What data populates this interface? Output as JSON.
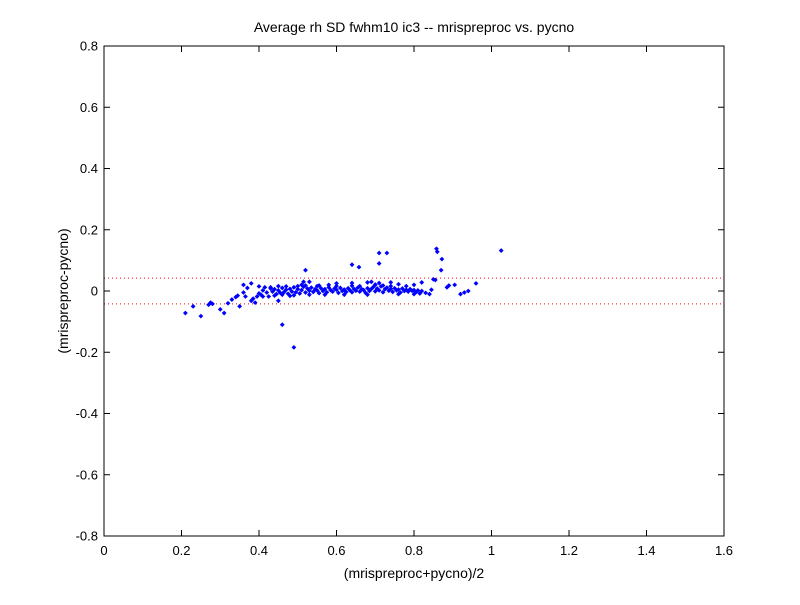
{
  "chart_data": {
    "type": "scatter",
    "title": "Average rh SD fwhm10 ic3 -- mrispreproc vs. pycno",
    "xlabel": "(mrispreproc+pycno)/2",
    "ylabel": "(mrispreproc-pycno)",
    "xlim": [
      0,
      1.6
    ],
    "ylim": [
      -0.8,
      0.8
    ],
    "xticks": [
      0,
      0.2,
      0.4,
      0.6,
      0.8,
      1,
      1.2,
      1.4,
      1.6
    ],
    "xtick_labels": [
      "0",
      "0.2",
      "0.4",
      "0.6",
      "0.8",
      "1",
      "1.2",
      "1.4",
      "1.6"
    ],
    "yticks": [
      -0.8,
      -0.6,
      -0.4,
      -0.2,
      0,
      0.2,
      0.4,
      0.6,
      0.8
    ],
    "ytick_labels": [
      "-0.8",
      "-0.6",
      "-0.4",
      "-0.2",
      "0",
      "0.2",
      "0.4",
      "0.6",
      "0.8"
    ],
    "grid": false,
    "point_color": "#0000ff",
    "reference_lines": [
      {
        "y": 0.042,
        "color": "#ff0000",
        "style": "dotted"
      },
      {
        "y": -0.042,
        "color": "#ff0000",
        "style": "dotted"
      }
    ],
    "points": [
      [
        0.21,
        -0.072
      ],
      [
        0.23,
        -0.05
      ],
      [
        0.25,
        -0.082
      ],
      [
        0.27,
        -0.045
      ],
      [
        0.275,
        -0.038
      ],
      [
        0.28,
        -0.042
      ],
      [
        0.3,
        -0.06
      ],
      [
        0.31,
        -0.072
      ],
      [
        0.32,
        -0.04
      ],
      [
        0.33,
        -0.028
      ],
      [
        0.34,
        -0.02
      ],
      [
        0.345,
        -0.015
      ],
      [
        0.35,
        -0.05
      ],
      [
        0.36,
        -0.005
      ],
      [
        0.365,
        -0.018
      ],
      [
        0.37,
        0.01
      ],
      [
        0.38,
        -0.032
      ],
      [
        0.385,
        -0.025
      ],
      [
        0.39,
        -0.038
      ],
      [
        0.395,
        -0.018
      ],
      [
        0.4,
        -0.008
      ],
      [
        0.405,
        -0.012
      ],
      [
        0.41,
        0.002
      ],
      [
        0.415,
        0.012
      ],
      [
        0.42,
        -0.005
      ],
      [
        0.425,
        -0.018
      ],
      [
        0.43,
        0.008
      ],
      [
        0.435,
        -0.002
      ],
      [
        0.44,
        0.006
      ],
      [
        0.445,
        -0.01
      ],
      [
        0.45,
        0.002
      ],
      [
        0.455,
        -0.006
      ],
      [
        0.46,
        0.01
      ],
      [
        0.465,
        -0.003
      ],
      [
        0.47,
        0.004
      ],
      [
        0.475,
        -0.009
      ],
      [
        0.48,
        0.007
      ],
      [
        0.485,
        -0.002
      ],
      [
        0.49,
        0.012
      ],
      [
        0.495,
        -0.004
      ],
      [
        0.5,
        0.006
      ],
      [
        0.505,
        -0.008
      ],
      [
        0.51,
        0.003
      ],
      [
        0.515,
        0.014
      ],
      [
        0.52,
        -0.005
      ],
      [
        0.525,
        0.008
      ],
      [
        0.53,
        0.001
      ],
      [
        0.535,
        0.011
      ],
      [
        0.54,
        -0.003
      ],
      [
        0.545,
        0.006
      ],
      [
        0.55,
        0.002
      ],
      [
        0.555,
        -0.007
      ],
      [
        0.56,
        0.009
      ],
      [
        0.565,
        0.0
      ],
      [
        0.57,
        0.006
      ],
      [
        0.575,
        -0.004
      ],
      [
        0.58,
        0.012
      ],
      [
        0.585,
        0.003
      ],
      [
        0.59,
        -0.002
      ],
      [
        0.595,
        0.008
      ],
      [
        0.6,
        0.004
      ],
      [
        0.605,
        -0.006
      ],
      [
        0.61,
        0.01
      ],
      [
        0.615,
        0.0
      ],
      [
        0.62,
        0.005
      ],
      [
        0.625,
        -0.003
      ],
      [
        0.63,
        0.009
      ],
      [
        0.635,
        0.002
      ],
      [
        0.64,
        -0.004
      ],
      [
        0.645,
        0.007
      ],
      [
        0.65,
        0.001
      ],
      [
        0.655,
        0.011
      ],
      [
        0.66,
        -0.002
      ],
      [
        0.665,
        0.006
      ],
      [
        0.67,
        0.003
      ],
      [
        0.675,
        -0.006
      ],
      [
        0.68,
        0.009
      ],
      [
        0.685,
        0.0
      ],
      [
        0.69,
        0.007
      ],
      [
        0.695,
        0.013
      ],
      [
        0.7,
        -0.001
      ],
      [
        0.705,
        0.008
      ],
      [
        0.71,
        0.002
      ],
      [
        0.715,
        0.015
      ],
      [
        0.72,
        -0.004
      ],
      [
        0.725,
        0.006
      ],
      [
        0.73,
        0.011
      ],
      [
        0.735,
        0.001
      ],
      [
        0.74,
        0.007
      ],
      [
        0.745,
        -0.003
      ],
      [
        0.75,
        0.009
      ],
      [
        0.755,
        0.002
      ],
      [
        0.76,
        0.005
      ],
      [
        0.765,
        -0.005
      ],
      [
        0.77,
        0.008
      ],
      [
        0.775,
        0.0
      ],
      [
        0.78,
        0.004
      ],
      [
        0.785,
        -0.002
      ],
      [
        0.79,
        0.006
      ],
      [
        0.795,
        0.001
      ],
      [
        0.8,
        0.003
      ],
      [
        0.805,
        -0.004
      ],
      [
        0.81,
        0.002
      ],
      [
        0.815,
        -0.008
      ],
      [
        0.82,
        0.0
      ],
      [
        0.83,
        -0.006
      ],
      [
        0.84,
        -0.01
      ],
      [
        0.845,
        0.004
      ],
      [
        0.43,
        0.012
      ],
      [
        0.44,
        -0.015
      ],
      [
        0.46,
        -0.012
      ],
      [
        0.47,
        0.015
      ],
      [
        0.49,
        -0.014
      ],
      [
        0.5,
        0.016
      ],
      [
        0.52,
        0.018
      ],
      [
        0.53,
        -0.012
      ],
      [
        0.55,
        0.016
      ],
      [
        0.57,
        -0.012
      ],
      [
        0.6,
        0.016
      ],
      [
        0.62,
        -0.012
      ],
      [
        0.64,
        0.017
      ],
      [
        0.66,
        0.016
      ],
      [
        0.68,
        -0.012
      ],
      [
        0.7,
        0.02
      ],
      [
        0.72,
        0.018
      ],
      [
        0.74,
        0.016
      ],
      [
        0.76,
        -0.01
      ],
      [
        0.78,
        0.016
      ],
      [
        0.8,
        -0.01
      ],
      [
        0.41,
        -0.018
      ],
      [
        0.45,
        0.016
      ],
      [
        0.48,
        -0.016
      ],
      [
        0.51,
        0.02
      ],
      [
        0.515,
        0.03
      ],
      [
        0.52,
        0.068
      ],
      [
        0.53,
        0.03
      ],
      [
        0.555,
        0.018
      ],
      [
        0.58,
        0.02
      ],
      [
        0.6,
        0.025
      ],
      [
        0.64,
        0.026
      ],
      [
        0.658,
        0.078
      ],
      [
        0.64,
        0.086
      ],
      [
        0.68,
        0.028
      ],
      [
        0.69,
        0.03
      ],
      [
        0.7,
        0.021
      ],
      [
        0.71,
        0.026
      ],
      [
        0.71,
        0.09
      ],
      [
        0.71,
        0.124
      ],
      [
        0.73,
        0.124
      ],
      [
        0.74,
        0.028
      ],
      [
        0.76,
        0.022
      ],
      [
        0.8,
        0.02
      ],
      [
        0.82,
        0.028
      ],
      [
        0.85,
        0.038
      ],
      [
        0.855,
        0.036
      ],
      [
        0.858,
        0.138
      ],
      [
        0.87,
        0.068
      ],
      [
        0.86,
        0.128
      ],
      [
        0.885,
        0.012
      ],
      [
        0.89,
        0.018
      ],
      [
        0.872,
        0.104
      ],
      [
        0.905,
        0.02
      ],
      [
        0.92,
        -0.01
      ],
      [
        0.93,
        -0.005
      ],
      [
        0.94,
        0.0
      ],
      [
        0.96,
        0.025
      ],
      [
        1.025,
        0.132
      ],
      [
        0.46,
        -0.11
      ],
      [
        0.49,
        -0.184
      ],
      [
        0.45,
        -0.032
      ],
      [
        0.4,
        0.015
      ],
      [
        0.38,
        0.025
      ],
      [
        0.36,
        0.02
      ]
    ]
  }
}
